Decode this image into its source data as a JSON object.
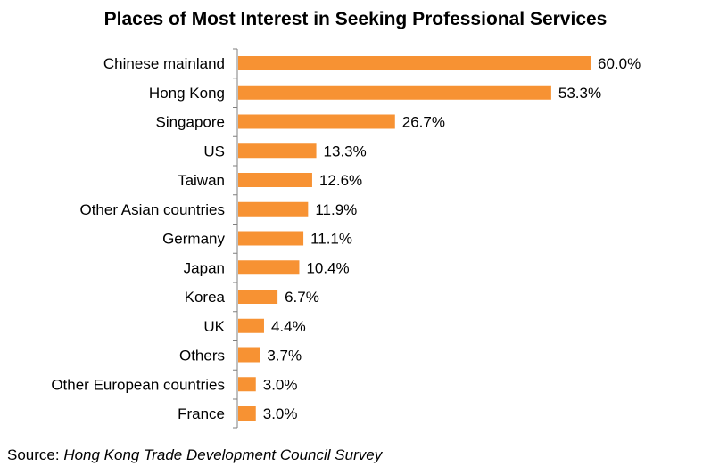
{
  "chart_data": {
    "type": "bar",
    "orientation": "horizontal",
    "title": "Places of Most Interest in Seeking Professional Services",
    "categories": [
      "Chinese mainland",
      "Hong Kong",
      "Singapore",
      "US",
      "Taiwan",
      "Other Asian countries",
      "Germany",
      "Japan",
      "Korea",
      "UK",
      "Others",
      "Other European countries",
      "France"
    ],
    "values": [
      60.0,
      53.3,
      26.7,
      13.3,
      12.6,
      11.9,
      11.1,
      10.4,
      6.7,
      4.4,
      3.7,
      3.0,
      3.0
    ],
    "data_labels": [
      "60.0%",
      "53.3%",
      "26.7%",
      "13.3%",
      "12.6%",
      "11.9%",
      "11.1%",
      "10.4%",
      "6.7%",
      "4.4%",
      "3.7%",
      "3.0%",
      "3.0%"
    ],
    "unit": "%",
    "xlim": [
      0,
      60
    ],
    "bar_color": "#F79233",
    "axis_color": "#7F7F7F",
    "grid": false,
    "legend": "none"
  },
  "source": {
    "label": "Source: ",
    "name": "Hong Kong Trade Development Council Survey"
  }
}
